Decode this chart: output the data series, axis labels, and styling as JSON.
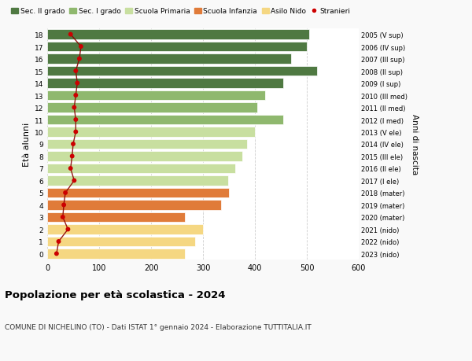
{
  "ages": [
    0,
    1,
    2,
    3,
    4,
    5,
    6,
    7,
    8,
    9,
    10,
    11,
    12,
    13,
    14,
    15,
    16,
    17,
    18
  ],
  "bar_values": [
    265,
    285,
    300,
    265,
    335,
    350,
    348,
    362,
    375,
    385,
    400,
    455,
    405,
    420,
    455,
    520,
    470,
    500,
    505
  ],
  "stranieri": [
    18,
    22,
    40,
    30,
    32,
    35,
    52,
    45,
    48,
    50,
    55,
    55,
    52,
    55,
    58,
    55,
    62,
    65,
    45
  ],
  "bar_colors": [
    "#f5d782",
    "#f5d782",
    "#f5d782",
    "#e07b39",
    "#e07b39",
    "#e07b39",
    "#c8dfa0",
    "#c8dfa0",
    "#c8dfa0",
    "#c8dfa0",
    "#c8dfa0",
    "#8fb86e",
    "#8fb86e",
    "#8fb86e",
    "#4f7942",
    "#4f7942",
    "#4f7942",
    "#4f7942",
    "#4f7942"
  ],
  "right_labels": [
    "2023 (nido)",
    "2022 (nido)",
    "2021 (nido)",
    "2020 (mater)",
    "2019 (mater)",
    "2018 (mater)",
    "2017 (I ele)",
    "2016 (II ele)",
    "2015 (III ele)",
    "2014 (IV ele)",
    "2013 (V ele)",
    "2012 (I med)",
    "2011 (II med)",
    "2010 (III med)",
    "2009 (I sup)",
    "2008 (II sup)",
    "2007 (III sup)",
    "2006 (IV sup)",
    "2005 (V sup)"
  ],
  "legend_labels": [
    "Sec. II grado",
    "Sec. I grado",
    "Scuola Primaria",
    "Scuola Infanzia",
    "Asilo Nido",
    "Stranieri"
  ],
  "legend_colors": [
    "#4f7942",
    "#8fb86e",
    "#c8dfa0",
    "#e07b39",
    "#f5d782",
    "#cc0000"
  ],
  "ylabel": "Età alunni",
  "right_ylabel": "Anni di nascita",
  "title": "Popolazione per età scolastica - 2024",
  "subtitle": "COMUNE DI NICHELINO (TO) - Dati ISTAT 1° gennaio 2024 - Elaborazione TUTTITALIA.IT",
  "xlim": [
    0,
    600
  ],
  "background_color": "#f9f9f9",
  "bar_background": "#ffffff",
  "grid_color": "#cccccc",
  "stranieri_color": "#cc0000",
  "stranieri_line_color": "#8b0000"
}
